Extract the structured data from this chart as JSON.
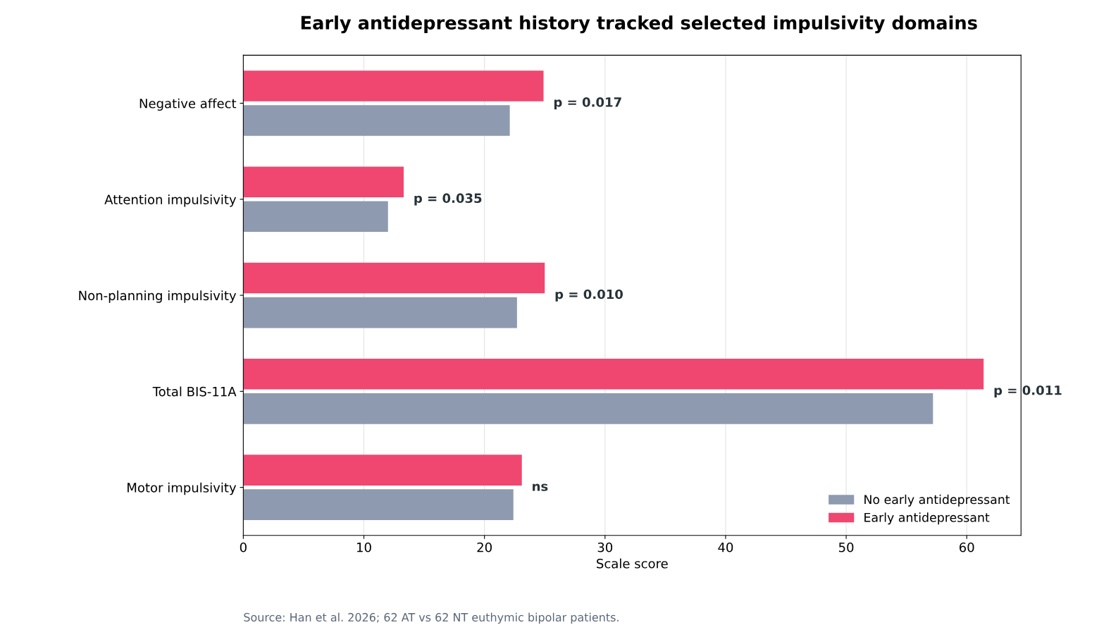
{
  "chart_data": {
    "type": "bar",
    "orientation": "horizontal",
    "title": "Early antidepressant history tracked selected impulsivity domains",
    "xlabel": "Scale score",
    "categories": [
      "Negative affect",
      "Attention impulsivity",
      "Non-planning impulsivity",
      "Total BIS-11A",
      "Motor impulsivity"
    ],
    "series": [
      {
        "name": "No early antidepressant",
        "color": "#8e9aaf",
        "values": [
          22.1,
          12.0,
          22.7,
          57.2,
          22.4
        ]
      },
      {
        "name": "Early antidepressant",
        "color": "#ef476f",
        "values": [
          24.9,
          13.3,
          25.0,
          61.4,
          23.1
        ]
      }
    ],
    "xlim": [
      0,
      64.5
    ],
    "xticks": [
      0,
      10,
      20,
      30,
      40,
      50,
      60
    ],
    "grid": "x",
    "legend": "bottom right",
    "annotations": [
      {
        "text": "p = 0.017",
        "x": 24.9,
        "y": "Negative affect"
      },
      {
        "text": "p = 0.035",
        "x": 13.3,
        "y": "Attention impulsivity"
      },
      {
        "text": "p = 0.010",
        "x": 25.0,
        "y": "Non-planning impulsivity"
      },
      {
        "text": "p = 0.011",
        "x": 61.4,
        "y": "Total BIS-11A"
      },
      {
        "text": "ns",
        "x": 23.1,
        "y": "Motor impulsivity"
      },
      "Source: Han et al. 2026; 62 AT vs 62 NT euthymic bipolar patients."
    ]
  }
}
